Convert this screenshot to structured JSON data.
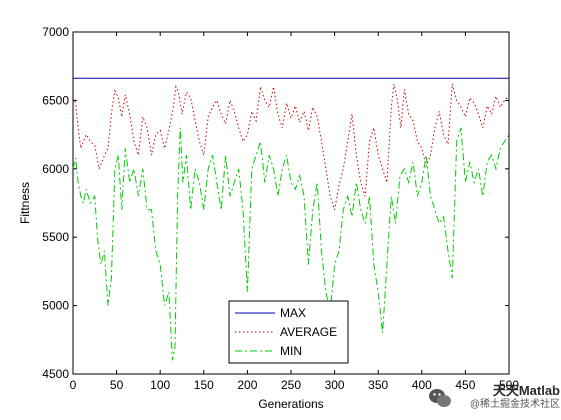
{
  "chart_data": {
    "type": "line",
    "xlabel": "Generations",
    "ylabel": "Fittness",
    "xlim": [
      0,
      500
    ],
    "ylim": [
      4500,
      7000
    ],
    "xticks": [
      "0",
      "50",
      "100",
      "150",
      "200",
      "250",
      "300",
      "350",
      "400",
      "450",
      "500"
    ],
    "yticks": [
      "4500",
      "5000",
      "5500",
      "6000",
      "6500",
      "7000"
    ],
    "grid": false,
    "legend_position": "bottom-center",
    "series": [
      {
        "name": "MAX",
        "style": "solid",
        "color": "#0000aa",
        "x": [
          0,
          500
        ],
        "y": [
          6662,
          6662
        ]
      },
      {
        "name": "AVERAGE",
        "style": "dotted",
        "color": "#cc0000",
        "x": [
          0,
          3,
          6,
          9,
          12,
          15,
          20,
          25,
          30,
          35,
          40,
          45,
          48,
          52,
          56,
          60,
          65,
          70,
          75,
          80,
          85,
          90,
          95,
          100,
          105,
          110,
          115,
          118,
          121,
          125,
          130,
          135,
          140,
          145,
          150,
          155,
          160,
          165,
          170,
          175,
          180,
          185,
          190,
          195,
          200,
          205,
          210,
          215,
          220,
          225,
          230,
          235,
          240,
          245,
          250,
          255,
          260,
          265,
          270,
          275,
          280,
          285,
          290,
          295,
          300,
          305,
          310,
          315,
          320,
          325,
          330,
          335,
          340,
          345,
          350,
          355,
          360,
          365,
          368,
          372,
          376,
          380,
          385,
          390,
          395,
          400,
          405,
          410,
          415,
          420,
          425,
          430,
          435,
          440,
          445,
          450,
          455,
          460,
          465,
          470,
          475,
          480,
          485,
          490,
          495,
          500
        ],
        "y": [
          6520,
          6480,
          6300,
          6150,
          6200,
          6250,
          6200,
          6170,
          6000,
          6080,
          6150,
          6450,
          6570,
          6520,
          6380,
          6540,
          6400,
          6200,
          6100,
          6380,
          6300,
          6100,
          6250,
          6280,
          6150,
          6280,
          6450,
          6600,
          6560,
          6400,
          6560,
          6520,
          6350,
          6200,
          6100,
          6380,
          6450,
          6500,
          6400,
          6330,
          6500,
          6420,
          6300,
          6200,
          6250,
          6420,
          6350,
          6600,
          6500,
          6450,
          6600,
          6400,
          6300,
          6480,
          6370,
          6460,
          6340,
          6420,
          6280,
          6450,
          6380,
          6200,
          6000,
          5800,
          5700,
          5880,
          6000,
          6200,
          6400,
          6100,
          5900,
          5800,
          6200,
          6300,
          6100,
          6000,
          5900,
          6450,
          6620,
          6500,
          6300,
          6580,
          6400,
          6350,
          6200,
          6150,
          6020,
          6100,
          6300,
          6420,
          6250,
          6180,
          6620,
          6500,
          6450,
          6380,
          6520,
          6480,
          6400,
          6300,
          6460,
          6400,
          6530,
          6450,
          6500,
          6540
        ]
      },
      {
        "name": "MIN",
        "style": "dashdot",
        "color": "#00cc00",
        "x": [
          0,
          3,
          6,
          9,
          12,
          15,
          20,
          25,
          28,
          32,
          36,
          40,
          44,
          48,
          52,
          56,
          60,
          65,
          70,
          75,
          80,
          85,
          90,
          95,
          100,
          105,
          110,
          114,
          117,
          120,
          123,
          126,
          130,
          135,
          140,
          145,
          150,
          155,
          160,
          165,
          170,
          175,
          180,
          185,
          190,
          195,
          200,
          205,
          210,
          215,
          220,
          225,
          230,
          235,
          240,
          245,
          250,
          255,
          260,
          265,
          270,
          275,
          280,
          285,
          290,
          295,
          300,
          305,
          310,
          315,
          320,
          325,
          330,
          335,
          340,
          345,
          350,
          355,
          360,
          365,
          370,
          375,
          380,
          385,
          390,
          395,
          400,
          405,
          410,
          415,
          420,
          425,
          430,
          435,
          440,
          445,
          450,
          455,
          460,
          465,
          470,
          475,
          480,
          485,
          490,
          495,
          500
        ],
        "y": [
          6000,
          6080,
          5900,
          5800,
          5750,
          5850,
          5750,
          5800,
          5500,
          5300,
          5400,
          5000,
          5200,
          6000,
          6100,
          5700,
          6150,
          5900,
          6000,
          5800,
          6000,
          5700,
          5700,
          5400,
          5300,
          5000,
          5100,
          4600,
          4700,
          5800,
          6300,
          5900,
          6100,
          5700,
          6000,
          5900,
          5700,
          6000,
          6100,
          5900,
          5700,
          6100,
          5800,
          5900,
          6000,
          5700,
          5100,
          6000,
          6100,
          6200,
          5900,
          6100,
          6000,
          5800,
          6000,
          6100,
          5900,
          5850,
          5950,
          5800,
          5300,
          5700,
          5900,
          5400,
          5100,
          4950,
          5300,
          5400,
          5700,
          5800,
          5650,
          5900,
          5700,
          5600,
          5800,
          5300,
          5100,
          4800,
          5300,
          5800,
          5600,
          5950,
          6000,
          5900,
          6050,
          5800,
          5900,
          6100,
          5800,
          5700,
          5600,
          5650,
          5400,
          5200,
          6200,
          6300,
          5900,
          6050,
          5900,
          6000,
          5800,
          6050,
          6100,
          6000,
          6150,
          6200,
          6250
        ]
      }
    ]
  },
  "watermark": {
    "line1": "天天Matlab",
    "line2": "@稀土掘金技术社区"
  }
}
